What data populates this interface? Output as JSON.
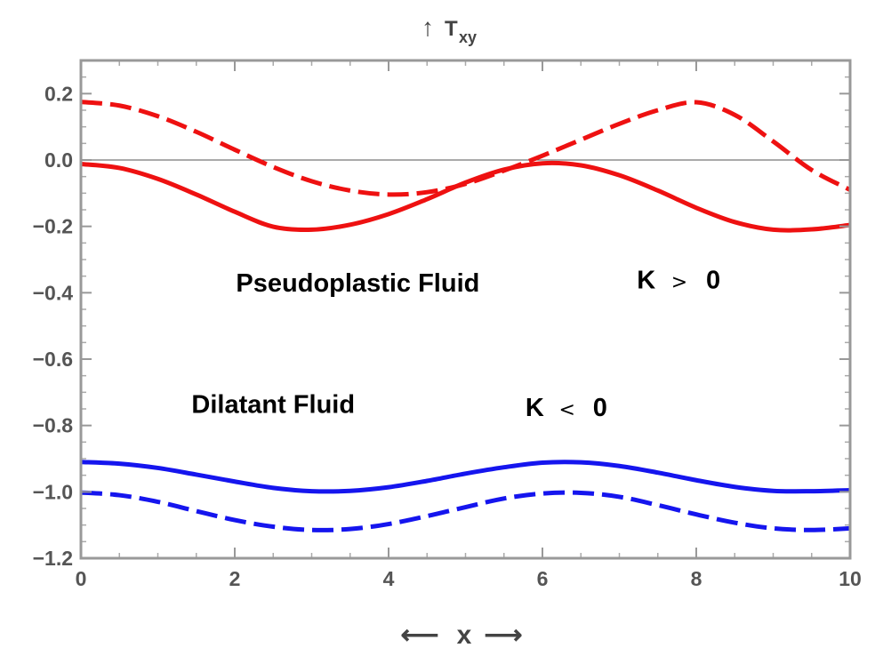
{
  "chart_data": {
    "type": "line",
    "title": "",
    "ylabel": "T",
    "ylabel_sub": "xy",
    "ylabel_arrow": "↑",
    "xlabel": "x",
    "xlabel_arrow_left": "⟵",
    "xlabel_arrow_right": "⟶",
    "xlim": [
      0,
      10
    ],
    "ylim": [
      -1.2,
      0.3
    ],
    "xticks": [
      0,
      2,
      4,
      6,
      8,
      10
    ],
    "xtick_labels": [
      "0",
      "2",
      "4",
      "6",
      "8",
      "10"
    ],
    "yticks": [
      0.2,
      0.0,
      -0.2,
      -0.4,
      -0.6,
      -0.8,
      -1.0,
      -1.2
    ],
    "ytick_labels": [
      "0.2",
      "0.0",
      "−0.2",
      "−0.4",
      "−0.6",
      "−0.8",
      "−1.0",
      "−1.2"
    ],
    "zero_line": true,
    "grid": false,
    "series": [
      {
        "style": "dashed",
        "color": "#ee1111",
        "x": [
          0,
          0.5,
          1,
          1.5,
          2,
          2.5,
          3,
          3.5,
          4,
          4.5,
          5,
          5.5,
          6,
          6.5,
          7,
          7.5,
          8,
          8.5,
          9,
          9.5,
          10
        ],
        "y": [
          0.175,
          0.164,
          0.132,
          0.085,
          0.031,
          -0.021,
          -0.064,
          -0.092,
          -0.104,
          -0.097,
          -0.072,
          -0.032,
          0.013,
          0.061,
          0.109,
          0.15,
          0.174,
          0.136,
          0.056,
          -0.03,
          -0.09
        ]
      },
      {
        "style": "solid",
        "color": "#ee1111",
        "x": [
          0,
          0.5,
          1,
          1.5,
          2,
          2.5,
          3,
          3.5,
          4,
          4.5,
          5,
          5.5,
          6,
          6.5,
          7,
          7.5,
          8,
          8.5,
          9,
          9.5,
          10
        ],
        "y": [
          -0.012,
          -0.024,
          -0.057,
          -0.104,
          -0.156,
          -0.201,
          -0.21,
          -0.195,
          -0.163,
          -0.118,
          -0.068,
          -0.029,
          -0.01,
          -0.016,
          -0.046,
          -0.092,
          -0.144,
          -0.187,
          -0.21,
          -0.209,
          -0.196
        ]
      },
      {
        "style": "solid",
        "color": "#1515ee",
        "x": [
          0,
          0.5,
          1,
          1.5,
          2,
          2.5,
          3,
          3.5,
          4,
          4.5,
          5,
          5.5,
          6,
          6.5,
          7,
          7.5,
          8,
          8.5,
          9,
          9.5,
          10
        ],
        "y": [
          -0.91,
          -0.915,
          -0.928,
          -0.948,
          -0.969,
          -0.988,
          -0.998,
          -0.997,
          -0.986,
          -0.967,
          -0.945,
          -0.926,
          -0.912,
          -0.911,
          -0.922,
          -0.942,
          -0.965,
          -0.985,
          -0.997,
          -0.998,
          -0.995
        ]
      },
      {
        "style": "dashed",
        "color": "#1515ee",
        "x": [
          0,
          0.5,
          1,
          1.5,
          2,
          2.5,
          3,
          3.5,
          4,
          4.5,
          5,
          5.5,
          6,
          6.5,
          7,
          7.5,
          8,
          8.5,
          9,
          9.5,
          10
        ],
        "y": [
          -1.002,
          -1.01,
          -1.03,
          -1.058,
          -1.085,
          -1.105,
          -1.115,
          -1.112,
          -1.097,
          -1.073,
          -1.046,
          -1.02,
          -1.005,
          -1.003,
          -1.015,
          -1.04,
          -1.068,
          -1.093,
          -1.11,
          -1.115,
          -1.11
        ]
      }
    ],
    "annotations": [
      {
        "text": "Pseudoplastic Fluid",
        "x": 3.6,
        "y": -0.37
      },
      {
        "text": "K",
        "x": 7.35,
        "y": -0.36,
        "symbol": true
      },
      {
        "text": ">",
        "x": 7.78,
        "y": -0.36,
        "operator": true
      },
      {
        "text": "0",
        "x": 8.22,
        "y": -0.36,
        "symbol": true
      },
      {
        "text": "Dilatant Fluid",
        "x": 2.5,
        "y": -0.735
      },
      {
        "text": "K",
        "x": 5.9,
        "y": -0.745,
        "symbol": true
      },
      {
        "text": "<",
        "x": 6.32,
        "y": -0.745,
        "operator": true
      },
      {
        "text": "0",
        "x": 6.75,
        "y": -0.745,
        "symbol": true
      }
    ]
  }
}
